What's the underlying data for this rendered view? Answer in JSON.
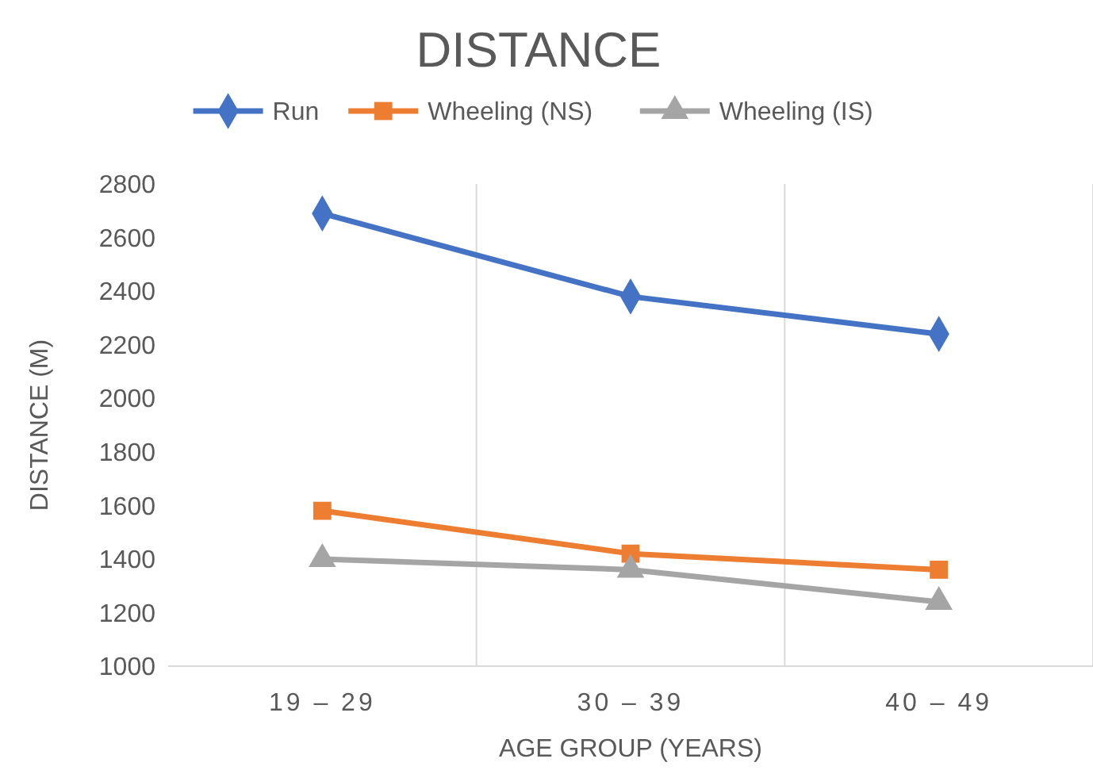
{
  "chart_data": {
    "type": "line",
    "title": "DISTANCE",
    "xlabel": "AGE GROUP (YEARS)",
    "ylabel": "DISTANCE (M)",
    "categories": [
      "19 – 29",
      "30 – 39",
      "40 – 49"
    ],
    "series": [
      {
        "name": "Run",
        "color": "#4472c4",
        "marker": "diamond",
        "values": [
          2690,
          2380,
          2240
        ]
      },
      {
        "name": "Wheeling (NS)",
        "color": "#ed7d31",
        "marker": "square",
        "values": [
          1580,
          1420,
          1360
        ]
      },
      {
        "name": "Wheeling (IS)",
        "color": "#a5a5a5",
        "marker": "triangle",
        "values": [
          1400,
          1360,
          1240
        ]
      }
    ],
    "ylim": [
      1000,
      2800
    ],
    "yticks": [
      1000,
      1200,
      1400,
      1600,
      1800,
      2000,
      2200,
      2400,
      2600,
      2800
    ],
    "grid": "x",
    "legend": "top"
  }
}
